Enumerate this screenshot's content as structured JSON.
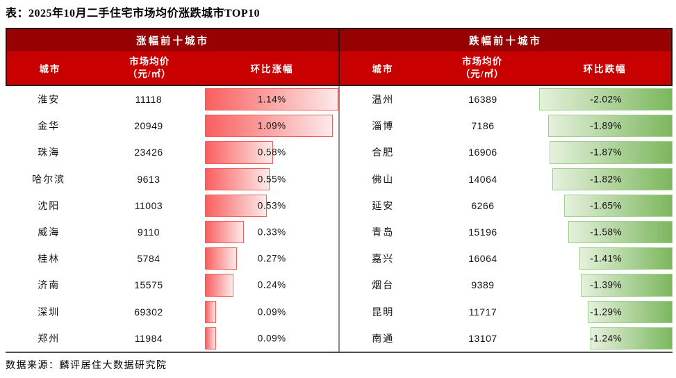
{
  "title": "表：2025年10月二手住宅市场均价涨跌城市TOP10",
  "source": "数据来源：麟评居住大数据研究院",
  "header": {
    "up_group": "涨幅前十城市",
    "down_group": "跌幅前十城市",
    "city_col": "城市",
    "price_col_line1": "市场均价",
    "price_col_line2": "（元/㎡）",
    "up_pct_col": "环比涨幅",
    "down_pct_col": "环比跌幅"
  },
  "colors": {
    "band_dark_red": "#970101",
    "band_red": "#C90000",
    "up_bar_start": "#FA5F5F",
    "up_bar_end": "#FCEAEA",
    "up_bar_border": "#EF5D5D",
    "down_bar_start": "#E5F1DD",
    "down_bar_end": "#7CB75E",
    "down_bar_border": "#9ED18D"
  },
  "chart_data": [
    {
      "type": "bar",
      "orientation": "horizontal",
      "title": "涨幅前十城市",
      "columns": [
        "城市",
        "市场均价（元/㎡）",
        "环比涨幅"
      ],
      "categories": [
        "淮安",
        "金华",
        "珠海",
        "哈尔滨",
        "沈阳",
        "威海",
        "桂林",
        "济南",
        "深圳",
        "郑州"
      ],
      "market_avg_price": [
        11118,
        20949,
        23426,
        9613,
        11003,
        9110,
        5784,
        15575,
        69302,
        11984
      ],
      "values": [
        1.14,
        1.09,
        0.58,
        0.55,
        0.53,
        0.33,
        0.27,
        0.24,
        0.09,
        0.09
      ],
      "value_labels": [
        "1.14%",
        "1.09%",
        "0.58%",
        "0.55%",
        "0.53%",
        "0.33%",
        "0.27%",
        "0.24%",
        "0.09%",
        "0.09%"
      ],
      "xlim": [
        0,
        1.14
      ],
      "bar_style": "red-gradient, left-anchored"
    },
    {
      "type": "bar",
      "orientation": "horizontal",
      "title": "跌幅前十城市",
      "columns": [
        "城市",
        "市场均价（元/㎡）",
        "环比跌幅"
      ],
      "categories": [
        "温州",
        "淄博",
        "合肥",
        "佛山",
        "延安",
        "青岛",
        "嘉兴",
        "烟台",
        "昆明",
        "南通"
      ],
      "market_avg_price": [
        16389,
        7186,
        16906,
        14064,
        6266,
        15196,
        16064,
        9389,
        11717,
        13107
      ],
      "values": [
        -2.02,
        -1.89,
        -1.87,
        -1.82,
        -1.65,
        -1.58,
        -1.41,
        -1.39,
        -1.29,
        -1.24
      ],
      "value_labels": [
        "-2.02%",
        "-1.89%",
        "-1.87%",
        "-1.82%",
        "-1.65%",
        "-1.58%",
        "-1.41%",
        "-1.39%",
        "-1.29%",
        "-1.24%"
      ],
      "xlim": [
        -2.02,
        0
      ],
      "bar_style": "green-gradient, right-anchored"
    }
  ]
}
